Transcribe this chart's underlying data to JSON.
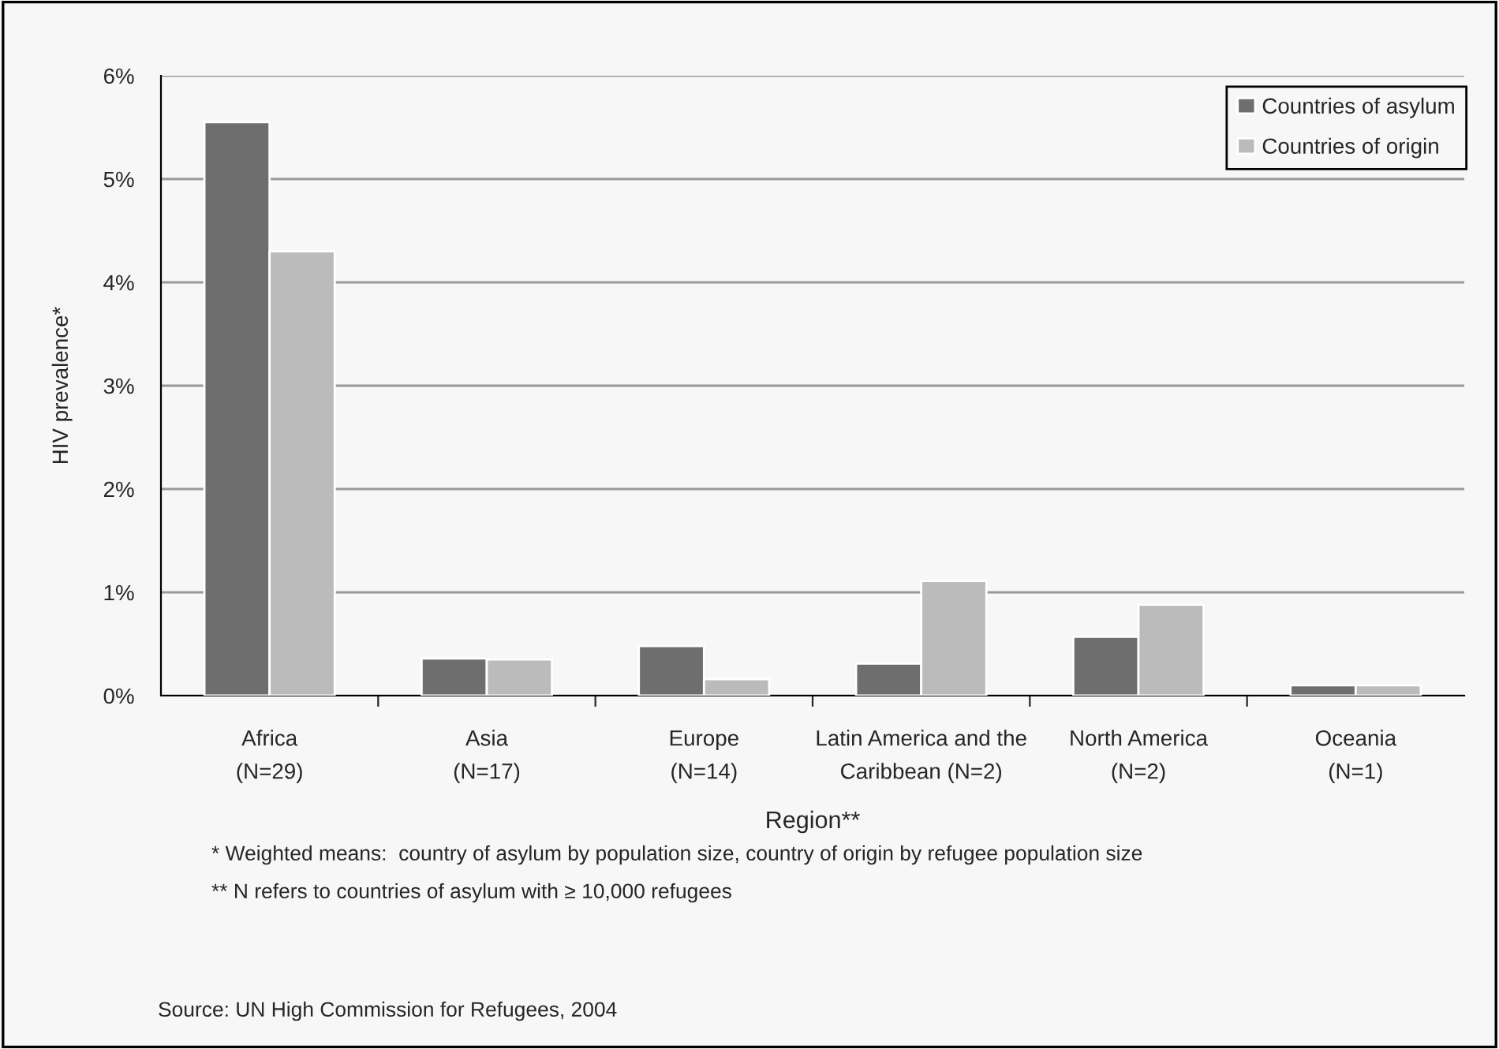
{
  "chart_data": {
    "type": "bar",
    "categories": [
      "Africa\n(N=29)",
      "Asia\n(N=17)",
      "Europe\n(N=14)",
      "Latin America and the\nCaribbean (N=2)",
      "North America\n(N=2)",
      "Oceania\n(N=1)"
    ],
    "series": [
      {
        "name": "Countries of asylum",
        "color": "#6e6e6e",
        "values": [
          5.55,
          0.36,
          0.48,
          0.31,
          0.57,
          0.1
        ]
      },
      {
        "name": "Countries of origin",
        "color": "#bbbbbb",
        "values": [
          4.3,
          0.35,
          0.16,
          1.11,
          0.88,
          0.1
        ]
      }
    ],
    "xlabel": "Region**",
    "ylabel": "HIV prevalence*",
    "ylim": [
      0,
      6
    ],
    "yticks": [
      {
        "value": 0,
        "label": "0%"
      },
      {
        "value": 1,
        "label": "1%"
      },
      {
        "value": 2,
        "label": "2%"
      },
      {
        "value": 3,
        "label": "3%"
      },
      {
        "value": 4,
        "label": "4%"
      },
      {
        "value": 5,
        "label": "5%"
      },
      {
        "value": 6,
        "label": "6%"
      }
    ],
    "grid": "y",
    "legend": "top right",
    "annotations": [
      "* Weighted means:  country of asylum by population size, country of origin by refugee population size",
      "** N refers to countries of asylum with ≥ 10,000 refugees",
      "Source: UN High Commission for Refugees, 2004"
    ]
  }
}
